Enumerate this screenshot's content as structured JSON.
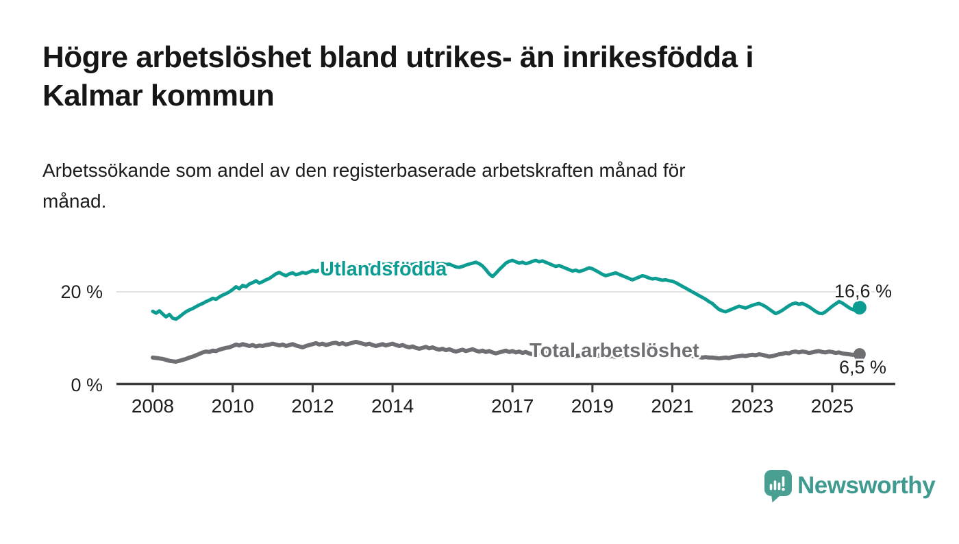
{
  "header": {
    "title": "Högre arbetslöshet bland utrikes- än inrikesfödda i\nKalmar kommun",
    "subtitle": "Arbetssökande som andel av den registerbaserade arbetskraften månad för\nmånad."
  },
  "chart_data": {
    "type": "line",
    "x_axis": {
      "start_year": 2008,
      "points_per_year": 12,
      "end_point": "2025-09",
      "tick_years": [
        2008,
        2010,
        2012,
        2014,
        2017,
        2019,
        2021,
        2023,
        2025
      ],
      "tick_labels": [
        "2008",
        "2010",
        "2012",
        "2014",
        "2017",
        "2019",
        "2021",
        "2023",
        "2025"
      ]
    },
    "y_axis": {
      "unit": "%",
      "ylim": [
        0,
        29
      ],
      "ticks": [
        {
          "value": 20,
          "label": "20 %"
        },
        {
          "value": 0,
          "label": "0 %"
        }
      ],
      "gridlines_at": [
        20
      ]
    },
    "grid_color": "#d9d9d9",
    "axis_color": "#3a3a3a",
    "tick_label_color": "#1d1d1d",
    "series": [
      {
        "name": "Utlandsfödda",
        "color": "#0d9c92",
        "end_value": 16.6,
        "end_label": "16,6 %",
        "values": [
          15.8,
          15.4,
          15.9,
          15.2,
          14.6,
          15.1,
          14.3,
          14.1,
          14.6,
          15.2,
          15.7,
          16.1,
          16.4,
          16.8,
          17.2,
          17.5,
          17.9,
          18.2,
          18.6,
          18.4,
          18.9,
          19.3,
          19.6,
          20.0,
          20.5,
          21.1,
          20.7,
          21.4,
          21.1,
          21.7,
          22.0,
          22.4,
          21.9,
          22.2,
          22.6,
          22.9,
          23.4,
          23.9,
          24.2,
          23.8,
          23.5,
          23.9,
          24.1,
          23.7,
          23.9,
          24.2,
          24.0,
          24.3,
          24.6,
          24.4,
          24.7,
          24.9,
          24.6,
          24.8,
          25.1,
          24.9,
          25.2,
          25.1,
          25.3,
          25.5,
          25.4,
          25.6,
          25.5,
          25.7,
          25.6,
          25.8,
          25.7,
          25.9,
          25.8,
          26.0,
          25.9,
          26.1,
          25.9,
          26.0,
          26.1,
          25.9,
          25.8,
          26.0,
          25.9,
          26.1,
          26.0,
          26.2,
          26.1,
          26.3,
          26.1,
          26.2,
          26.0,
          26.1,
          25.9,
          26.0,
          25.7,
          25.4,
          25.3,
          25.5,
          25.8,
          26.0,
          26.2,
          26.4,
          26.1,
          25.6,
          24.8,
          23.9,
          23.3,
          24.0,
          24.8,
          25.5,
          26.2,
          26.6,
          26.8,
          26.5,
          26.2,
          26.4,
          26.1,
          26.3,
          26.6,
          26.8,
          26.5,
          26.7,
          26.4,
          26.1,
          25.8,
          25.5,
          25.7,
          25.4,
          25.1,
          24.8,
          24.5,
          24.7,
          24.4,
          24.6,
          24.9,
          25.2,
          25.0,
          24.6,
          24.2,
          23.8,
          23.5,
          23.7,
          23.9,
          24.1,
          23.8,
          23.5,
          23.2,
          22.9,
          22.6,
          22.9,
          23.2,
          23.5,
          23.3,
          23.0,
          22.8,
          22.9,
          22.7,
          22.5,
          22.6,
          22.4,
          22.3,
          22.0,
          21.6,
          21.2,
          20.8,
          20.4,
          20.0,
          19.6,
          19.2,
          18.8,
          18.4,
          17.9,
          17.5,
          16.8,
          16.2,
          15.9,
          15.7,
          16.0,
          16.3,
          16.6,
          16.9,
          16.7,
          16.5,
          16.8,
          17.1,
          17.3,
          17.5,
          17.2,
          16.8,
          16.3,
          15.8,
          15.3,
          15.6,
          16.0,
          16.5,
          17.0,
          17.4,
          17.6,
          17.3,
          17.5,
          17.2,
          16.8,
          16.3,
          15.8,
          15.4,
          15.3,
          15.7,
          16.3,
          16.9,
          17.4,
          17.9,
          17.6,
          17.1,
          16.6,
          16.2,
          16.0,
          16.6
        ]
      },
      {
        "name": "Total arbetslöshet",
        "color": "#6f6f73",
        "end_value": 6.5,
        "end_label": "6,5 %",
        "values": [
          5.8,
          5.7,
          5.6,
          5.5,
          5.3,
          5.1,
          5.0,
          4.9,
          5.1,
          5.3,
          5.5,
          5.8,
          6.0,
          6.3,
          6.6,
          6.9,
          7.1,
          7.0,
          7.3,
          7.2,
          7.5,
          7.7,
          7.9,
          8.0,
          8.3,
          8.6,
          8.4,
          8.7,
          8.5,
          8.3,
          8.5,
          8.2,
          8.4,
          8.3,
          8.5,
          8.6,
          8.8,
          8.6,
          8.4,
          8.6,
          8.3,
          8.5,
          8.7,
          8.4,
          8.2,
          8.0,
          8.3,
          8.5,
          8.7,
          8.9,
          8.6,
          8.8,
          8.5,
          8.7,
          8.9,
          9.0,
          8.7,
          8.9,
          8.6,
          8.8,
          9.0,
          9.2,
          9.0,
          8.8,
          8.6,
          8.8,
          8.5,
          8.3,
          8.5,
          8.7,
          8.4,
          8.6,
          8.8,
          8.5,
          8.3,
          8.5,
          8.2,
          8.0,
          8.2,
          7.9,
          7.7,
          7.9,
          8.1,
          7.8,
          8.0,
          7.7,
          7.5,
          7.7,
          7.4,
          7.6,
          7.3,
          7.1,
          7.3,
          7.5,
          7.2,
          7.4,
          7.6,
          7.3,
          7.1,
          7.3,
          7.0,
          7.2,
          6.9,
          6.7,
          6.9,
          7.1,
          7.3,
          7.0,
          7.2,
          6.9,
          7.1,
          6.8,
          7.0,
          6.7,
          6.5,
          6.7,
          6.9,
          6.6,
          6.8,
          7.0,
          6.8,
          6.6,
          6.7,
          6.5,
          6.4,
          6.2,
          6.3,
          6.1,
          6.2,
          6.4,
          6.3,
          6.5,
          6.4,
          6.2,
          6.3,
          6.1,
          6.2,
          6.0,
          6.1,
          5.9,
          6.0,
          6.2,
          6.1,
          6.3,
          6.5,
          6.7,
          7.2,
          7.8,
          8.0,
          7.9,
          7.7,
          7.5,
          7.4,
          7.2,
          7.0,
          6.9,
          6.8,
          6.7,
          6.6,
          6.5,
          6.4,
          6.2,
          6.1,
          6.0,
          5.9,
          5.8,
          5.9,
          5.8,
          5.8,
          5.7,
          5.6,
          5.7,
          5.8,
          5.7,
          5.9,
          6.0,
          6.1,
          6.2,
          6.1,
          6.3,
          6.4,
          6.3,
          6.5,
          6.4,
          6.2,
          6.0,
          6.1,
          6.3,
          6.5,
          6.6,
          6.8,
          6.7,
          7.0,
          7.1,
          6.9,
          7.1,
          7.0,
          6.8,
          6.9,
          7.1,
          7.2,
          7.0,
          6.9,
          7.1,
          7.0,
          6.8,
          6.9,
          6.7,
          6.6,
          6.5,
          6.4,
          6.4,
          6.5
        ]
      }
    ]
  },
  "footer": {
    "brand": "Newsworthy",
    "brand_color": "#3f9a8f",
    "logo_icon": "speech-bubble-bar-chart-icon",
    "logo_color": "#49a092"
  }
}
